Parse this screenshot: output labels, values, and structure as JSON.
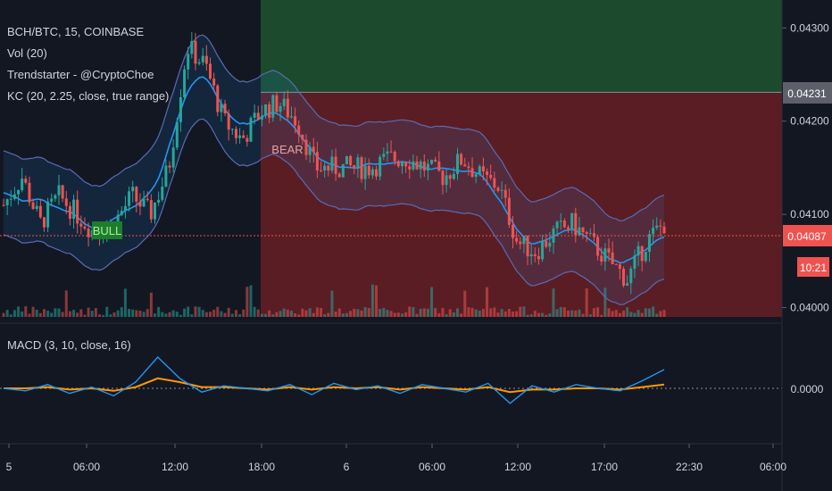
{
  "symbol_title": "BCH/BTC, 15, COINBASE",
  "indicators": [
    "Vol (20)",
    "Trendstarter - @CryptoChoe",
    "KC (20, 2.25, close, true range)"
  ],
  "macd_title": "MACD (3, 10, close, 16)",
  "signals": {
    "bull": "BULL",
    "bear": "BEAR"
  },
  "colors": {
    "background": "#131722",
    "bull_zone": "#1b4a2c",
    "bear_zone": "#5a1d24",
    "up_candle": "#26a69a",
    "down_candle": "#ef5350",
    "kc_basis": "#2196f3",
    "macd_line": "#2196f3",
    "signal_line": "#ff9800"
  },
  "chart_data": [
    {
      "type": "candlestick",
      "title": "BCH/BTC, 15, COINBASE",
      "y_ticks": [
        "0.04300",
        "0.04200",
        "0.04100",
        "0.04000"
      ],
      "price_labels": {
        "target": "0.04231",
        "last": "0.04087",
        "countdown": "10:21"
      },
      "ylim": [
        0.0399,
        0.0433
      ],
      "x_ticks": [
        "5",
        "06:00",
        "12:00",
        "18:00",
        "6",
        "06:00",
        "12:00",
        "17:00",
        "22:30",
        "06:00"
      ],
      "series_points": [
        0.0411,
        0.0414,
        0.0409,
        0.0412,
        0.041,
        0.0408,
        0.0409,
        0.0412,
        0.041,
        0.0415,
        0.0428,
        0.0426,
        0.042,
        0.0418,
        0.0421,
        0.0422,
        0.042,
        0.0415,
        0.0415,
        0.0415,
        0.0415,
        0.0416,
        0.0416,
        0.0415,
        0.0414,
        0.0416,
        0.0414,
        0.0413,
        0.0407,
        0.0406,
        0.0408,
        0.0409,
        0.0407,
        0.0405,
        0.0403,
        0.0407,
        0.0409
      ],
      "zones": [
        {
          "label": "BULL",
          "y_from": 0.04231,
          "y_to": 0.0433
        },
        {
          "label": "BEAR",
          "y_from": 0.0399,
          "y_to": 0.04231
        }
      ]
    },
    {
      "type": "line",
      "title": "MACD (3, 10, close, 16)",
      "y_ticks": [
        "0.0000"
      ],
      "series": [
        {
          "values": [
            0.0,
            -0.2,
            0.3,
            -0.4,
            0.1,
            -0.6,
            0.5,
            2.5,
            0.8,
            -0.3,
            0.2,
            0.0,
            -0.2,
            0.3,
            -0.5,
            0.4,
            -0.1,
            0.2,
            -0.4,
            0.3,
            0.0,
            -0.3,
            0.4,
            -1.2,
            0.2,
            -0.3,
            0.3,
            0.0,
            -0.2,
            0.6,
            1.5
          ]
        },
        {
          "values": [
            0.0,
            0.0,
            0.1,
            -0.1,
            0.0,
            -0.2,
            0.1,
            0.8,
            0.5,
            0.1,
            0.1,
            0.0,
            -0.1,
            0.1,
            -0.1,
            0.1,
            0.0,
            0.1,
            -0.1,
            0.1,
            0.0,
            -0.1,
            0.1,
            -0.3,
            -0.1,
            -0.1,
            0.0,
            0.0,
            -0.1,
            0.1,
            0.3
          ]
        }
      ]
    }
  ]
}
